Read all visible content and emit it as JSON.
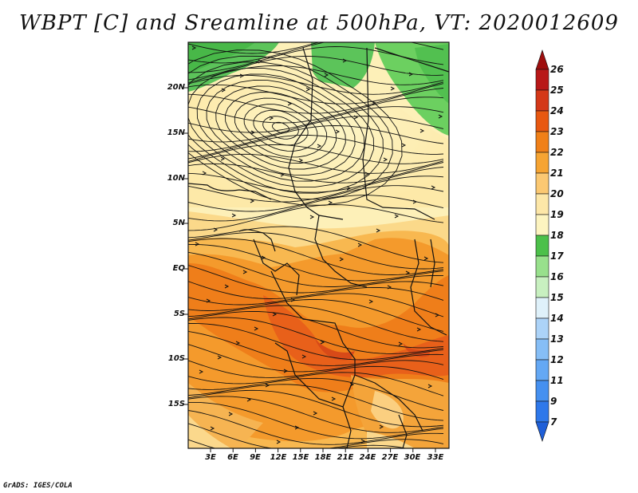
{
  "title": "WBPT [C] and Sreamline at 500hPa, VT: 2020012609",
  "map": {
    "variable": "Wet-bulb potential temperature",
    "units": "C",
    "level": "500hPa",
    "lat_labels": [
      "20N",
      "15N",
      "10N",
      "5N",
      "EQ",
      "5S",
      "10S",
      "15S"
    ],
    "lon_labels": [
      "3E",
      "6E",
      "9E",
      "12E",
      "15E",
      "18E",
      "21E",
      "24E",
      "27E",
      "30E",
      "33E"
    ]
  },
  "colorbar": {
    "labels": [
      "7",
      "9",
      "11",
      "12",
      "13",
      "14",
      "15",
      "16",
      "17",
      "18",
      "19",
      "20",
      "21",
      "22",
      "23",
      "24",
      "25",
      "26"
    ],
    "colors": [
      "#1f5fd8",
      "#2e78ea",
      "#4590f0",
      "#64a8f4",
      "#86bef6",
      "#acd3f8",
      "#dff1fa",
      "#c8f0c0",
      "#98e08c",
      "#4cc04a",
      "#fdf4c0",
      "#fde7a8",
      "#fbc872",
      "#f6a432",
      "#f08018",
      "#e85810",
      "#d43818",
      "#b81818",
      "#9e0e0e"
    ]
  },
  "credit": "GrADS: IGES/COLA"
}
